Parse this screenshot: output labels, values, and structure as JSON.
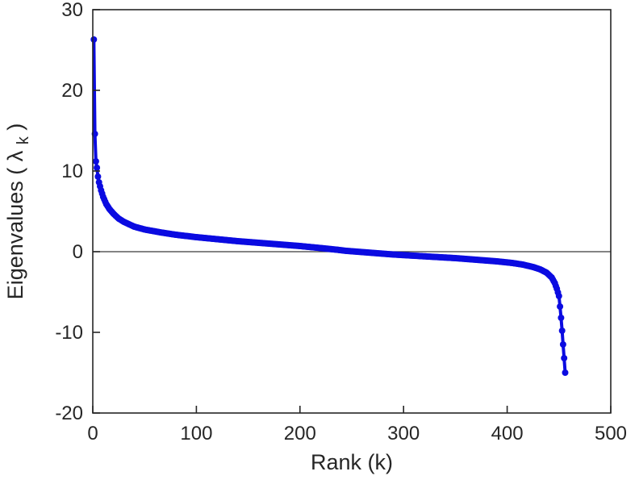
{
  "chart_data": {
    "type": "line",
    "title": "",
    "xlabel": "Rank (k)",
    "ylabel": "Eigenvalues ( λk )",
    "ylabel_parts": [
      "Eigenvalues ( λ",
      "k",
      " )"
    ],
    "xlim": [
      0,
      500
    ],
    "ylim": [
      -20,
      30
    ],
    "xticks": [
      0,
      100,
      200,
      300,
      400,
      500
    ],
    "yticks": [
      -20,
      -10,
      0,
      10,
      20,
      30
    ],
    "grid": false,
    "zero_line_y": 0,
    "legend": "none",
    "k_range": [
      1,
      456
    ],
    "series": [
      {
        "name": "eigenvalues",
        "marker": "dot",
        "anchors": [
          [
            1,
            26.3
          ],
          [
            2,
            14.6
          ],
          [
            3,
            11.2
          ],
          [
            4,
            10.4
          ],
          [
            5,
            9.3
          ],
          [
            6,
            8.6
          ],
          [
            8,
            7.6
          ],
          [
            10,
            6.8
          ],
          [
            13,
            5.9
          ],
          [
            16,
            5.3
          ],
          [
            20,
            4.7
          ],
          [
            25,
            4.1
          ],
          [
            30,
            3.7
          ],
          [
            40,
            3.1
          ],
          [
            50,
            2.75
          ],
          [
            65,
            2.4
          ],
          [
            80,
            2.1
          ],
          [
            100,
            1.8
          ],
          [
            120,
            1.55
          ],
          [
            140,
            1.3
          ],
          [
            160,
            1.1
          ],
          [
            180,
            0.9
          ],
          [
            200,
            0.7
          ],
          [
            220,
            0.45
          ],
          [
            235,
            0.25
          ],
          [
            245,
            0.1
          ],
          [
            255,
            0.0
          ],
          [
            270,
            -0.15
          ],
          [
            290,
            -0.35
          ],
          [
            310,
            -0.5
          ],
          [
            330,
            -0.65
          ],
          [
            350,
            -0.8
          ],
          [
            370,
            -1.0
          ],
          [
            390,
            -1.2
          ],
          [
            405,
            -1.4
          ],
          [
            415,
            -1.6
          ],
          [
            425,
            -1.9
          ],
          [
            432,
            -2.2
          ],
          [
            438,
            -2.6
          ],
          [
            443,
            -3.2
          ],
          [
            446,
            -3.9
          ],
          [
            448,
            -4.6
          ],
          [
            450,
            -5.5
          ],
          [
            451,
            -6.8
          ],
          [
            452,
            -8.2
          ],
          [
            453,
            -9.8
          ],
          [
            454,
            -11.5
          ],
          [
            455,
            -13.2
          ],
          [
            456,
            -15.0
          ]
        ]
      }
    ],
    "colors": {
      "line": "#0b0be1",
      "axis": "#262626",
      "zero_line": "#3a3a3a",
      "background": "#ffffff"
    }
  }
}
